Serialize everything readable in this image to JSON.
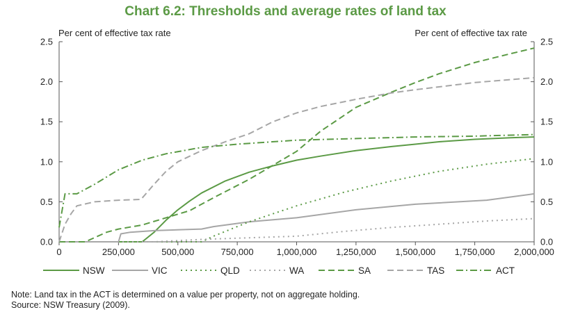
{
  "chart_data": {
    "type": "line",
    "title": "Chart 6.2: Thresholds and average rates of land tax",
    "ylabel_left": "Per cent of effective tax rate",
    "ylabel_right": "Per cent of effective tax rate",
    "xlim": [
      0,
      2000000
    ],
    "ylim": [
      0,
      2.5
    ],
    "x_ticks": [
      0,
      250000,
      500000,
      750000,
      1000000,
      1250000,
      1500000,
      1750000,
      2000000
    ],
    "x_tick_labels": [
      "0",
      "250,000",
      "500,000",
      "750,000",
      "1,000,000",
      "1,250,000",
      "1,500,000",
      "1,750,000",
      "2,000,000"
    ],
    "y_ticks": [
      0,
      0.5,
      1.0,
      1.5,
      2.0,
      2.5
    ],
    "y_tick_labels": [
      "0.0",
      "0.5",
      "1.0",
      "1.5",
      "2.0",
      "2.5"
    ],
    "grid": false,
    "legend_position": "bottom",
    "series": [
      {
        "name": "NSW",
        "color": "#5b9a45",
        "dash": "solid",
        "points": [
          [
            0,
            0
          ],
          [
            350000,
            0
          ],
          [
            400000,
            0.12
          ],
          [
            450000,
            0.27
          ],
          [
            500000,
            0.4
          ],
          [
            550000,
            0.51
          ],
          [
            600000,
            0.61
          ],
          [
            700000,
            0.76
          ],
          [
            800000,
            0.87
          ],
          [
            900000,
            0.95
          ],
          [
            1000000,
            1.02
          ],
          [
            1100000,
            1.07
          ],
          [
            1250000,
            1.14
          ],
          [
            1400000,
            1.19
          ],
          [
            1500000,
            1.22
          ],
          [
            1600000,
            1.25
          ],
          [
            1750000,
            1.28
          ],
          [
            1900000,
            1.3
          ],
          [
            2000000,
            1.31
          ]
        ]
      },
      {
        "name": "VIC",
        "color": "#a6a6a6",
        "dash": "solid",
        "points": [
          [
            0,
            0
          ],
          [
            250000,
            0
          ],
          [
            260000,
            0.1
          ],
          [
            300000,
            0.12
          ],
          [
            400000,
            0.14
          ],
          [
            600000,
            0.16
          ],
          [
            650000,
            0.19
          ],
          [
            800000,
            0.25
          ],
          [
            1000000,
            0.3
          ],
          [
            1250000,
            0.4
          ],
          [
            1500000,
            0.47
          ],
          [
            1800000,
            0.52
          ],
          [
            2000000,
            0.6
          ]
        ]
      },
      {
        "name": "QLD",
        "color": "#5b9a45",
        "dash": "dot",
        "points": [
          [
            0,
            0
          ],
          [
            600000,
            0
          ],
          [
            650000,
            0.07
          ],
          [
            800000,
            0.25
          ],
          [
            1000000,
            0.45
          ],
          [
            1200000,
            0.62
          ],
          [
            1400000,
            0.76
          ],
          [
            1600000,
            0.88
          ],
          [
            1800000,
            0.97
          ],
          [
            2000000,
            1.04
          ]
        ]
      },
      {
        "name": "WA",
        "color": "#a6a6a6",
        "dash": "dot",
        "points": [
          [
            0,
            0
          ],
          [
            400000,
            0
          ],
          [
            600000,
            0.03
          ],
          [
            800000,
            0.05
          ],
          [
            1000000,
            0.07
          ],
          [
            1200000,
            0.13
          ],
          [
            1400000,
            0.18
          ],
          [
            1600000,
            0.22
          ],
          [
            1800000,
            0.26
          ],
          [
            2000000,
            0.29
          ]
        ]
      },
      {
        "name": "SA",
        "color": "#5b9a45",
        "dash": "dash",
        "points": [
          [
            0,
            0
          ],
          [
            110000,
            0
          ],
          [
            200000,
            0.12
          ],
          [
            250000,
            0.16
          ],
          [
            350000,
            0.21
          ],
          [
            450000,
            0.3
          ],
          [
            550000,
            0.39
          ],
          [
            650000,
            0.55
          ],
          [
            800000,
            0.78
          ],
          [
            1000000,
            1.13
          ],
          [
            1100000,
            1.38
          ],
          [
            1250000,
            1.68
          ],
          [
            1400000,
            1.87
          ],
          [
            1500000,
            1.99
          ],
          [
            1600000,
            2.1
          ],
          [
            1750000,
            2.24
          ],
          [
            1900000,
            2.35
          ],
          [
            2000000,
            2.42
          ]
        ]
      },
      {
        "name": "TAS",
        "color": "#a6a6a6",
        "dash": "dash",
        "points": [
          [
            0,
            0
          ],
          [
            25000,
            0.22
          ],
          [
            50000,
            0.35
          ],
          [
            75000,
            0.45
          ],
          [
            150000,
            0.5
          ],
          [
            250000,
            0.52
          ],
          [
            345000,
            0.53
          ],
          [
            400000,
            0.72
          ],
          [
            450000,
            0.88
          ],
          [
            500000,
            1.0
          ],
          [
            600000,
            1.14
          ],
          [
            700000,
            1.25
          ],
          [
            800000,
            1.35
          ],
          [
            900000,
            1.5
          ],
          [
            1000000,
            1.61
          ],
          [
            1100000,
            1.69
          ],
          [
            1250000,
            1.78
          ],
          [
            1400000,
            1.86
          ],
          [
            1500000,
            1.9
          ],
          [
            1750000,
            1.99
          ],
          [
            2000000,
            2.05
          ]
        ]
      },
      {
        "name": "ACT",
        "color": "#5b9a45",
        "dash": "dashdot",
        "points": [
          [
            0,
            0.18
          ],
          [
            25000,
            0.6
          ],
          [
            50000,
            0.6
          ],
          [
            75000,
            0.6
          ],
          [
            150000,
            0.72
          ],
          [
            250000,
            0.9
          ],
          [
            350000,
            1.02
          ],
          [
            450000,
            1.1
          ],
          [
            600000,
            1.18
          ],
          [
            750000,
            1.22
          ],
          [
            1000000,
            1.27
          ],
          [
            1250000,
            1.29
          ],
          [
            1500000,
            1.31
          ],
          [
            1750000,
            1.32
          ],
          [
            2000000,
            1.34
          ]
        ]
      }
    ]
  },
  "notes": {
    "note": "Note: Land tax in the ACT is determined on a value per property, not on aggregate holding.",
    "source": "Source: NSW Treasury (2009)."
  }
}
